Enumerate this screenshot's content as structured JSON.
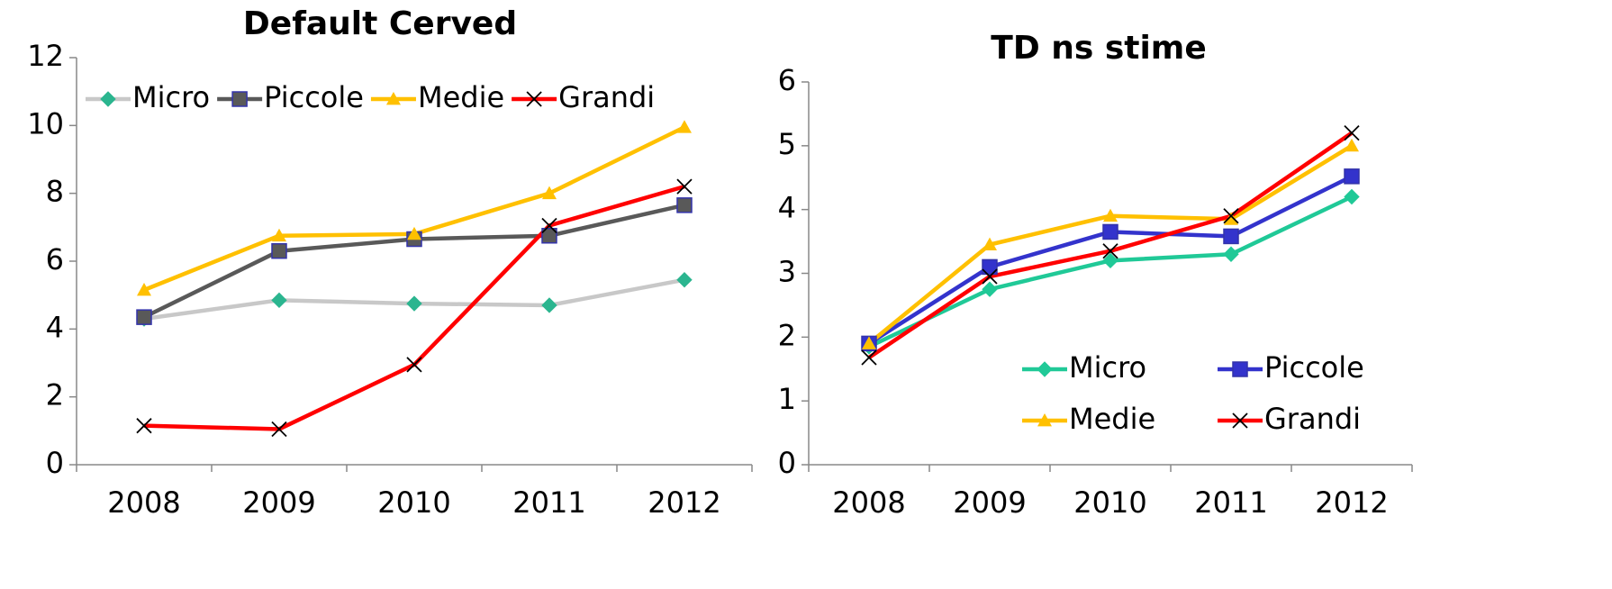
{
  "chart_data": [
    {
      "type": "line",
      "title": "Default Cerved",
      "categories": [
        "2008",
        "2009",
        "2010",
        "2011",
        "2012"
      ],
      "ylim": [
        0,
        12
      ],
      "yticks": [
        0,
        2,
        4,
        6,
        8,
        10,
        12
      ],
      "legend": "top-left",
      "series": [
        {
          "name": "Micro",
          "color": "#c8c8c8",
          "marker": "diamond",
          "marker_color": "#2bb58f",
          "values": [
            4.3,
            4.85,
            4.75,
            4.7,
            5.45
          ]
        },
        {
          "name": "Piccole",
          "color": "#595959",
          "marker": "square",
          "marker_color": "#595959",
          "values": [
            4.35,
            6.3,
            6.65,
            6.75,
            7.65
          ]
        },
        {
          "name": "Medie",
          "color": "#ffc000",
          "marker": "triangle",
          "marker_color": "#ffc000",
          "values": [
            5.15,
            6.75,
            6.8,
            8.0,
            9.95
          ]
        },
        {
          "name": "Grandi",
          "color": "#ff0000",
          "marker": "x",
          "marker_color": "#000000",
          "values": [
            1.15,
            1.05,
            2.95,
            7.05,
            8.2
          ]
        }
      ]
    },
    {
      "type": "line",
      "title": "TD ns stime",
      "categories": [
        "2008",
        "2009",
        "2010",
        "2011",
        "2012"
      ],
      "ylim": [
        0,
        6
      ],
      "yticks": [
        0,
        1,
        2,
        3,
        4,
        5,
        6
      ],
      "legend": "bottom-right",
      "series": [
        {
          "name": "Micro",
          "color": "#20c997",
          "marker": "diamond",
          "marker_color": "#20c997",
          "values": [
            1.85,
            2.75,
            3.2,
            3.3,
            4.2
          ]
        },
        {
          "name": "Piccole",
          "color": "#3333cc",
          "marker": "square",
          "marker_color": "#3333cc",
          "values": [
            1.9,
            3.1,
            3.65,
            3.58,
            4.52
          ]
        },
        {
          "name": "Medie",
          "color": "#ffc000",
          "marker": "triangle",
          "marker_color": "#ffc000",
          "values": [
            1.9,
            3.45,
            3.9,
            3.85,
            5.0
          ]
        },
        {
          "name": "Grandi",
          "color": "#ff0000",
          "marker": "x",
          "marker_color": "#000000",
          "values": [
            1.68,
            2.95,
            3.35,
            3.9,
            5.2
          ]
        }
      ]
    }
  ]
}
